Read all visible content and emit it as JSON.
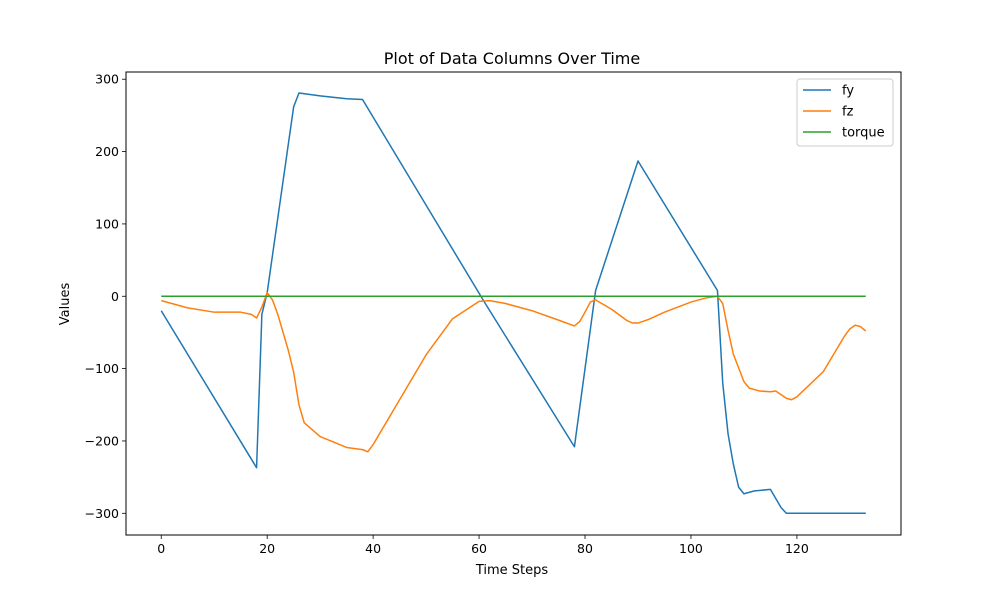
{
  "chart_data": {
    "type": "line",
    "title": "Plot of Data Columns Over Time",
    "xlabel": "Time Steps",
    "ylabel": "Values",
    "xlim": [
      -6.65,
      139.65
    ],
    "ylim": [
      -330,
      310
    ],
    "xticks": [
      0,
      20,
      40,
      60,
      80,
      100,
      120
    ],
    "yticks": [
      -300,
      -200,
      -100,
      0,
      100,
      200,
      300
    ],
    "ytick_labels": [
      "−300",
      "−200",
      "−100",
      "0",
      "100",
      "200",
      "300"
    ],
    "grid": false,
    "legend_position": "top-right",
    "series": [
      {
        "name": "fy",
        "color": "#1f77b4",
        "x": [
          0,
          18,
          19,
          20,
          25,
          26,
          30,
          35,
          38,
          61,
          78,
          82,
          90,
          105,
          106,
          107,
          108,
          109,
          110,
          112,
          115,
          117,
          118,
          120,
          133
        ],
        "y": [
          -20,
          -237,
          -25,
          5,
          262,
          281,
          277,
          273,
          272,
          -8,
          -208,
          8,
          187,
          8,
          -120,
          -190,
          -232,
          -264,
          -273,
          -269,
          -267,
          -292,
          -300,
          -300,
          -300
        ]
      },
      {
        "name": "fz",
        "color": "#ff7f0e",
        "x": [
          0,
          5,
          10,
          15,
          17,
          18,
          19,
          20,
          21,
          22,
          24,
          25,
          26,
          27,
          30,
          35,
          38,
          39,
          40,
          45,
          50,
          55,
          60,
          62,
          65,
          70,
          75,
          78,
          79,
          80,
          81,
          82,
          85,
          88,
          89,
          90,
          92,
          95,
          100,
          103,
          105,
          106,
          107,
          108,
          110,
          111,
          113,
          115,
          116,
          118,
          119,
          120,
          125,
          129,
          130,
          131,
          132,
          133
        ],
        "y": [
          -6,
          -16,
          -22,
          -22,
          -25,
          -30,
          -15,
          5,
          -5,
          -25,
          -75,
          -105,
          -150,
          -175,
          -194,
          -209,
          -212,
          -215,
          -205,
          -143,
          -81,
          -31,
          -7,
          -6,
          -10,
          -20,
          -33,
          -41,
          -35,
          -22,
          -8,
          -5,
          -18,
          -34,
          -37,
          -37,
          -32,
          -22,
          -8,
          -2,
          0,
          -10,
          -47,
          -80,
          -118,
          -127,
          -131,
          -132,
          -131,
          -141,
          -143,
          -139,
          -104,
          -55,
          -45,
          -40,
          -42,
          -48
        ]
      },
      {
        "name": "torque",
        "color": "#2ca02c",
        "x": [
          0,
          133
        ],
        "y": [
          0,
          0
        ]
      }
    ]
  }
}
